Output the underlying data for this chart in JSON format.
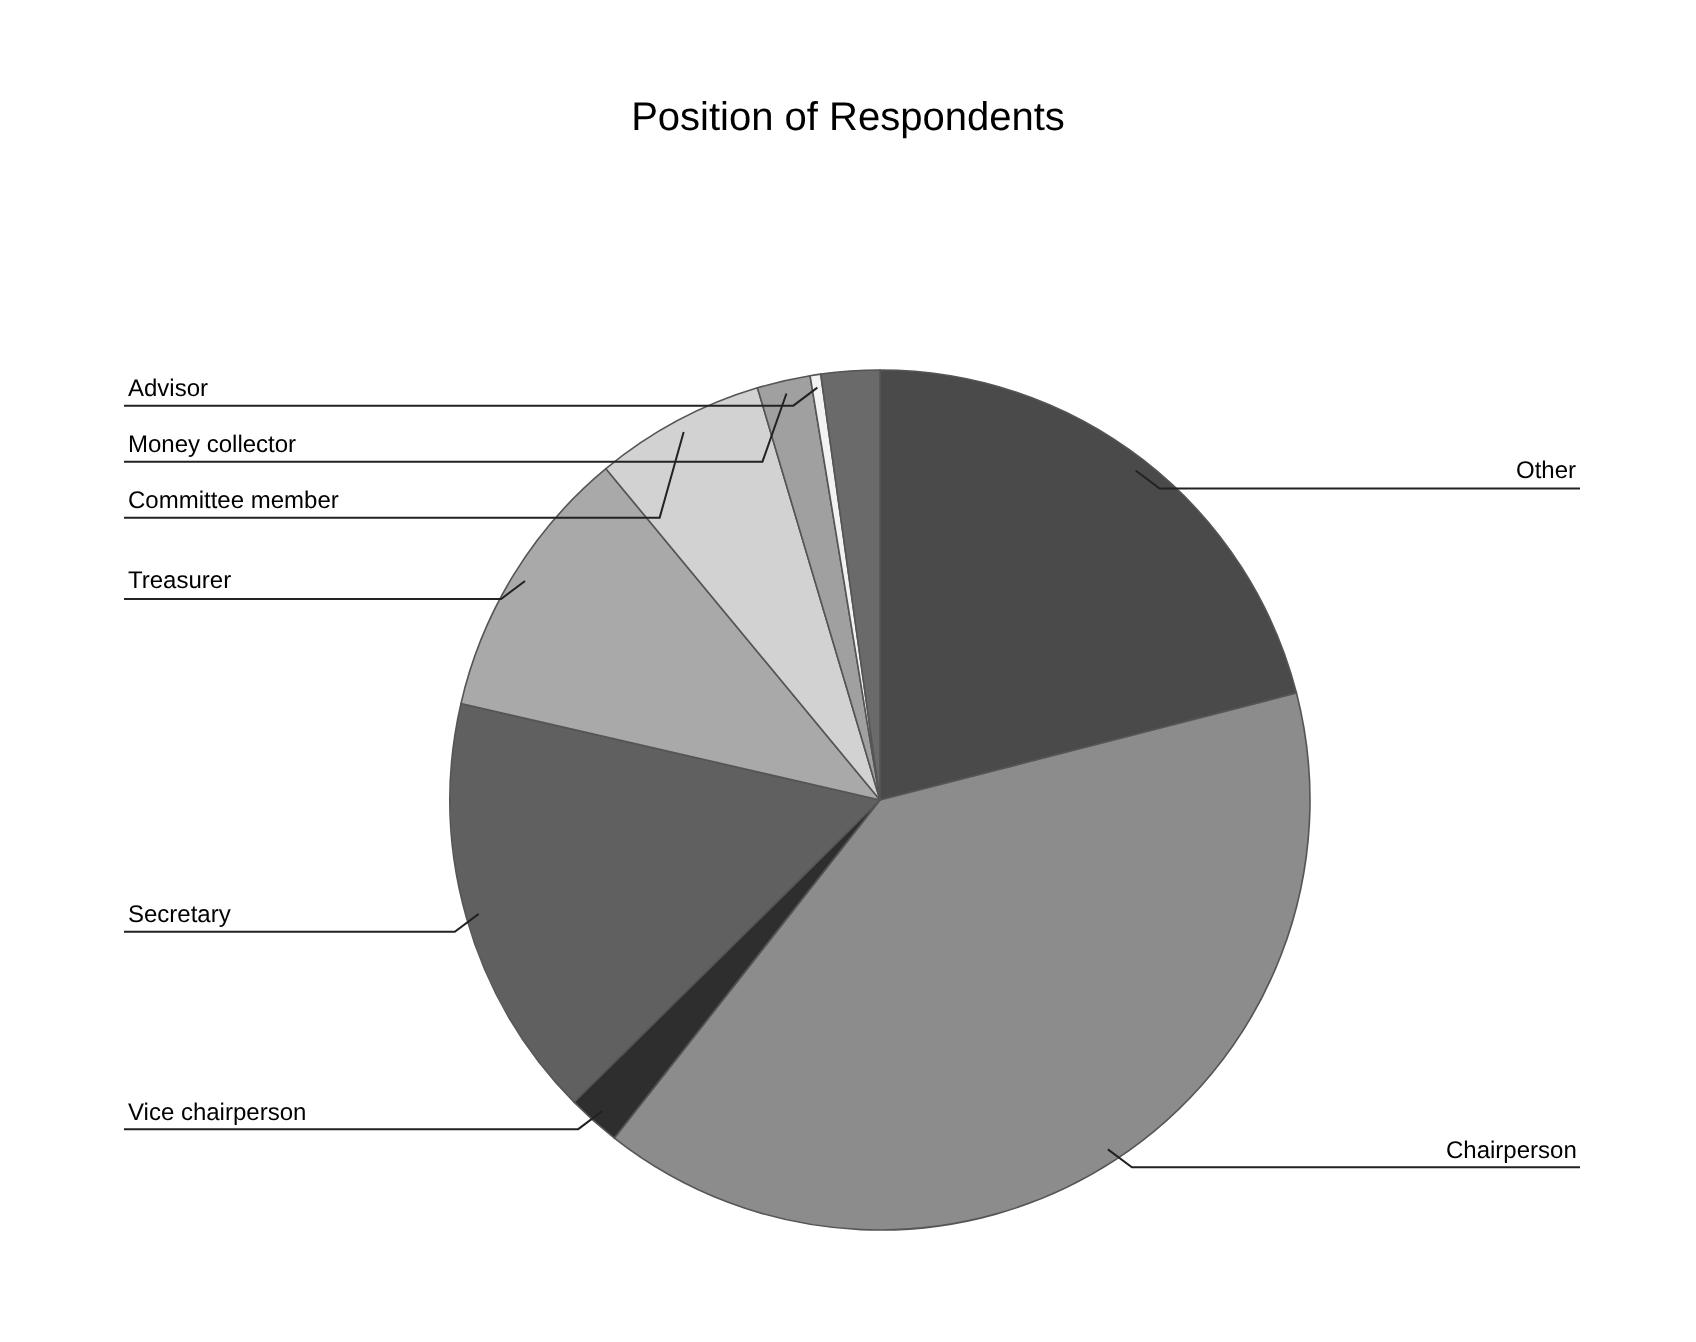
{
  "chart_data": {
    "type": "pie",
    "title": "Position of Respondents",
    "categories": [
      "Other",
      "Chairperson",
      "Vice chairperson",
      "Secretary",
      "Treasurer",
      "Committee member",
      "Money collector",
      "Advisor",
      null
    ],
    "values": [
      21.0,
      39.6,
      2.0,
      16.0,
      10.4,
      6.4,
      2.0,
      0.4,
      2.2
    ],
    "colors": [
      "#4a4a4a",
      "#8c8c8c",
      "#2e2e2e",
      "#606060",
      "#a9a9a9",
      "#d2d2d2",
      "#a0a0a0",
      "#f2f2f2",
      "#6a6a6a"
    ]
  }
}
